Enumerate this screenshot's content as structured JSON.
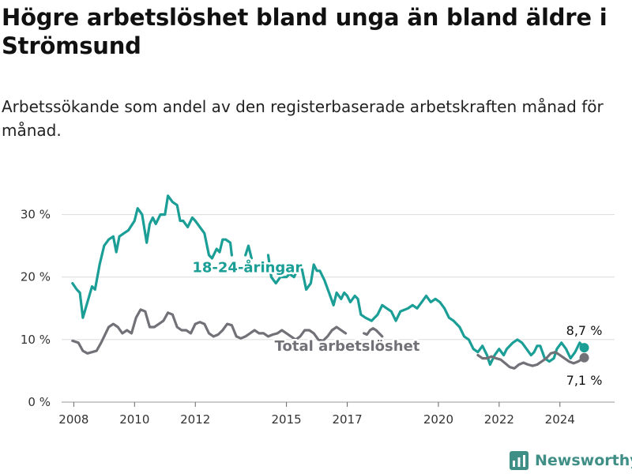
{
  "header": {
    "title": "Högre arbetslöshet bland unga än bland äldre i Strömsund",
    "subtitle": "Arbetssökande som andel av den registerbaserade arbetskraften månad för månad."
  },
  "brand": {
    "name": "Newsworthy",
    "icon": "chart-logo-icon",
    "color": "#3f8f86"
  },
  "chart_data": {
    "type": "line",
    "title": "Högre arbetslöshet bland unga än bland äldre i Strömsund",
    "subtitle": "Arbetssökande som andel av den registerbaserade arbetskraften månad för månad.",
    "ylim": [
      0,
      35
    ],
    "y_ticks": [
      0,
      10,
      20,
      30
    ],
    "y_tick_labels": [
      "0 %",
      "10 %",
      "20 %",
      "30 %"
    ],
    "x_ticks": [
      2008,
      2010,
      2012,
      2015,
      2017,
      2020,
      2022,
      2024
    ],
    "x_tick_labels": [
      "2008",
      "2010",
      "2012",
      "2015",
      "2017",
      "2020",
      "2022",
      "2024"
    ],
    "xlim": [
      2007.6,
      2025.8
    ],
    "grid": true,
    "legend": "inline labels",
    "series": [
      {
        "name": "18-24-åringar",
        "color": "#1a9e96",
        "end_label": "8,7 %",
        "points": [
          [
            2007.96,
            19.0
          ],
          [
            2008.1,
            18.0
          ],
          [
            2008.2,
            17.5
          ],
          [
            2008.3,
            13.5
          ],
          [
            2008.45,
            16.0
          ],
          [
            2008.6,
            18.5
          ],
          [
            2008.7,
            18.0
          ],
          [
            2008.85,
            22.0
          ],
          [
            2009.0,
            25.0
          ],
          [
            2009.15,
            26.0
          ],
          [
            2009.3,
            26.5
          ],
          [
            2009.4,
            24.0
          ],
          [
            2009.5,
            26.5
          ],
          [
            2009.65,
            27.0
          ],
          [
            2009.8,
            27.5
          ],
          [
            2010.0,
            29.0
          ],
          [
            2010.1,
            31.0
          ],
          [
            2010.25,
            30.0
          ],
          [
            2010.4,
            25.5
          ],
          [
            2010.5,
            28.5
          ],
          [
            2010.6,
            29.5
          ],
          [
            2010.7,
            28.5
          ],
          [
            2010.85,
            30.0
          ],
          [
            2011.0,
            30.0
          ],
          [
            2011.1,
            33.0
          ],
          [
            2011.25,
            32.0
          ],
          [
            2011.4,
            31.5
          ],
          [
            2011.5,
            29.0
          ],
          [
            2011.6,
            29.0
          ],
          [
            2011.75,
            28.0
          ],
          [
            2011.9,
            29.5
          ],
          [
            2012.0,
            29.0
          ],
          [
            2012.15,
            28.0
          ],
          [
            2012.3,
            27.0
          ],
          [
            2012.45,
            23.5
          ],
          [
            2012.55,
            23.0
          ],
          [
            2012.7,
            24.5
          ],
          [
            2012.8,
            24.0
          ],
          [
            2012.9,
            26.0
          ],
          [
            2013.0,
            26.0
          ],
          [
            2013.15,
            25.5
          ],
          [
            2013.2,
            23.5
          ],
          null,
          [
            2013.65,
            23.5
          ],
          [
            2013.75,
            25.0
          ],
          [
            2013.85,
            23.0
          ],
          null,
          [
            2014.4,
            23.5
          ],
          [
            2014.5,
            20.0
          ],
          [
            2014.65,
            19.0
          ],
          [
            2014.8,
            20.0
          ],
          [
            2015.0,
            20.0
          ],
          [
            2015.1,
            20.5
          ],
          [
            2015.25,
            20.0
          ],
          [
            2015.35,
            21.0
          ],
          [
            2015.5,
            21.5
          ],
          [
            2015.65,
            18.0
          ],
          [
            2015.8,
            19.0
          ],
          [
            2015.9,
            22.0
          ],
          [
            2016.0,
            21.0
          ],
          [
            2016.1,
            21.0
          ],
          [
            2016.25,
            19.5
          ],
          [
            2016.4,
            17.5
          ],
          [
            2016.55,
            15.5
          ],
          [
            2016.65,
            17.5
          ],
          [
            2016.8,
            16.5
          ],
          [
            2016.9,
            17.5
          ],
          [
            2017.0,
            17.0
          ],
          [
            2017.1,
            16.0
          ],
          [
            2017.25,
            17.0
          ],
          [
            2017.35,
            16.5
          ],
          [
            2017.45,
            14.0
          ],
          [
            2017.6,
            13.5
          ],
          [
            2017.8,
            13.0
          ],
          [
            2018.0,
            14.0
          ],
          [
            2018.15,
            15.5
          ],
          [
            2018.3,
            15.0
          ],
          [
            2018.45,
            14.5
          ],
          [
            2018.6,
            13.0
          ],
          [
            2018.75,
            14.5
          ],
          [
            2019.0,
            15.0
          ],
          [
            2019.15,
            15.5
          ],
          [
            2019.3,
            15.0
          ],
          [
            2019.45,
            16.0
          ],
          [
            2019.6,
            17.0
          ],
          [
            2019.75,
            16.0
          ],
          [
            2019.9,
            16.5
          ],
          [
            2020.05,
            16.0
          ],
          [
            2020.2,
            15.0
          ],
          [
            2020.35,
            13.5
          ],
          [
            2020.5,
            13.0
          ],
          [
            2020.6,
            12.5
          ],
          [
            2020.7,
            12.0
          ],
          [
            2020.85,
            10.5
          ],
          [
            2021.0,
            10.0
          ],
          [
            2021.15,
            8.5
          ],
          [
            2021.3,
            8.0
          ],
          [
            2021.45,
            9.0
          ],
          [
            2021.6,
            7.5
          ],
          [
            2021.7,
            6.0
          ],
          [
            2021.85,
            7.5
          ],
          [
            2022.0,
            8.5
          ],
          [
            2022.15,
            7.5
          ],
          [
            2022.25,
            8.5
          ],
          [
            2022.45,
            9.5
          ],
          [
            2022.6,
            10.0
          ],
          [
            2022.75,
            9.5
          ],
          [
            2022.9,
            8.5
          ],
          [
            2023.05,
            7.5
          ],
          [
            2023.15,
            8.0
          ],
          [
            2023.25,
            9.0
          ],
          [
            2023.35,
            9.0
          ],
          [
            2023.5,
            7.0
          ],
          [
            2023.65,
            6.5
          ],
          [
            2023.8,
            7.0
          ],
          [
            2023.9,
            8.5
          ],
          [
            2024.05,
            9.5
          ],
          [
            2024.2,
            8.5
          ],
          [
            2024.35,
            7.0
          ],
          [
            2024.5,
            8.0
          ],
          [
            2024.65,
            9.5
          ],
          [
            2024.8,
            8.7
          ]
        ]
      },
      {
        "name": "Total arbetslöshet",
        "color": "#737178",
        "end_label": "7,1 %",
        "points": [
          [
            2007.96,
            9.8
          ],
          [
            2008.15,
            9.5
          ],
          [
            2008.3,
            8.2
          ],
          [
            2008.45,
            7.8
          ],
          [
            2008.6,
            8.0
          ],
          [
            2008.75,
            8.2
          ],
          [
            2008.9,
            9.5
          ],
          [
            2009.0,
            10.5
          ],
          [
            2009.15,
            12.0
          ],
          [
            2009.3,
            12.5
          ],
          [
            2009.45,
            12.0
          ],
          [
            2009.6,
            11.0
          ],
          [
            2009.75,
            11.5
          ],
          [
            2009.9,
            11.0
          ],
          [
            2010.05,
            13.5
          ],
          [
            2010.2,
            14.8
          ],
          [
            2010.35,
            14.5
          ],
          [
            2010.5,
            12.0
          ],
          [
            2010.65,
            12.0
          ],
          [
            2010.8,
            12.5
          ],
          [
            2010.95,
            13.0
          ],
          [
            2011.1,
            14.3
          ],
          [
            2011.25,
            14.0
          ],
          [
            2011.4,
            12.0
          ],
          [
            2011.55,
            11.5
          ],
          [
            2011.7,
            11.5
          ],
          [
            2011.85,
            11.0
          ],
          [
            2012.0,
            12.5
          ],
          [
            2012.15,
            12.8
          ],
          [
            2012.3,
            12.5
          ],
          [
            2012.45,
            11.0
          ],
          [
            2012.6,
            10.5
          ],
          [
            2012.75,
            10.8
          ],
          [
            2012.9,
            11.5
          ],
          [
            2013.05,
            12.5
          ],
          [
            2013.2,
            12.3
          ],
          [
            2013.35,
            10.5
          ],
          [
            2013.5,
            10.2
          ],
          [
            2013.65,
            10.5
          ],
          [
            2013.8,
            11.0
          ],
          [
            2013.95,
            11.5
          ],
          [
            2014.1,
            11.0
          ],
          [
            2014.25,
            11.0
          ],
          [
            2014.4,
            10.5
          ],
          [
            2014.55,
            10.8
          ],
          [
            2014.7,
            11.0
          ],
          [
            2014.85,
            11.5
          ],
          [
            2015.0,
            11.0
          ],
          [
            2015.15,
            10.5
          ],
          [
            2015.3,
            10.0
          ],
          [
            2015.45,
            10.5
          ],
          [
            2015.6,
            11.5
          ],
          [
            2015.75,
            11.5
          ],
          [
            2015.9,
            11.0
          ],
          [
            2016.05,
            10.0
          ],
          [
            2016.2,
            9.8
          ],
          [
            2016.35,
            10.5
          ],
          [
            2016.5,
            11.5
          ],
          [
            2016.65,
            12.0
          ],
          [
            2016.8,
            11.5
          ],
          [
            2016.95,
            11.0
          ],
          null,
          [
            2017.55,
            11.0
          ],
          [
            2017.65,
            10.8
          ],
          [
            2017.75,
            11.5
          ],
          [
            2017.85,
            11.8
          ],
          [
            2017.95,
            11.5
          ],
          [
            2018.05,
            11.0
          ],
          [
            2018.15,
            10.5
          ],
          null,
          [
            2021.3,
            7.5
          ],
          [
            2021.45,
            7.0
          ],
          [
            2021.6,
            7.0
          ],
          [
            2021.75,
            7.3
          ],
          [
            2021.9,
            7.0
          ],
          [
            2022.05,
            6.8
          ],
          [
            2022.2,
            6.2
          ],
          [
            2022.35,
            5.6
          ],
          [
            2022.5,
            5.4
          ],
          [
            2022.65,
            6.0
          ],
          [
            2022.8,
            6.3
          ],
          [
            2022.95,
            6.0
          ],
          [
            2023.1,
            5.8
          ],
          [
            2023.25,
            6.0
          ],
          [
            2023.4,
            6.5
          ],
          [
            2023.55,
            7.0
          ],
          [
            2023.7,
            7.8
          ],
          [
            2023.85,
            8.0
          ],
          [
            2024.0,
            7.5
          ],
          [
            2024.15,
            7.0
          ],
          [
            2024.3,
            6.5
          ],
          [
            2024.45,
            6.2
          ],
          [
            2024.6,
            6.5
          ],
          [
            2024.8,
            7.1
          ]
        ]
      }
    ]
  }
}
